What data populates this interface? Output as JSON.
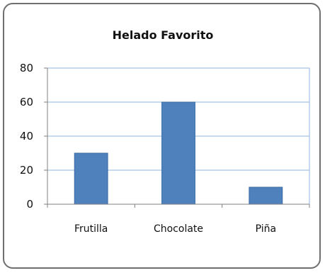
{
  "chart_data": {
    "type": "bar",
    "title": "Helado Favorito",
    "xlabel": "",
    "ylabel": "",
    "categories": [
      "Frutilla",
      "Chocolate",
      "Piña"
    ],
    "values": [
      30,
      60,
      10
    ],
    "ylim": [
      0,
      80
    ],
    "yticks": [
      0,
      20,
      40,
      60,
      80
    ],
    "grid": true,
    "legend": "none",
    "colors": {
      "bar": "#4f81bd",
      "bar_edge": "#3a6aa6",
      "plot_border": "#8fb4e3",
      "grid": "#8fb4e3",
      "axis": "#808080"
    }
  }
}
